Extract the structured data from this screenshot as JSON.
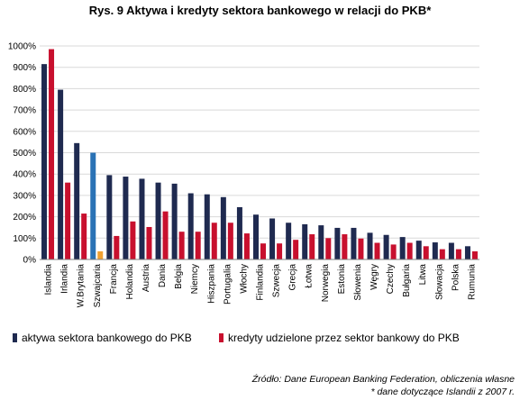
{
  "title": "Rys. 9 Aktywa i kredyty sektora bankowego w relacji do PKB*",
  "colors": {
    "assets": "#1f2a50",
    "credits": "#c8102e",
    "assets_highlight": "#2a72b5",
    "credits_highlight": "#f0a030",
    "grid": "#d9d9d9",
    "axis": "#808080"
  },
  "chart_data": {
    "type": "bar",
    "categories": [
      "Islandia",
      "Irlandia",
      "W.Brytania",
      "Szwajcaria",
      "Francja",
      "Holandia",
      "Austria",
      "Dania",
      "Belgia",
      "Niemcy",
      "Hiszpania",
      "Portugalia",
      "Włochy",
      "Finlandia",
      "Szwecja",
      "Grecja",
      "Łotwa",
      "Norwegia",
      "Estonia",
      "Słowenia",
      "Węgry",
      "Czechy",
      "Bułgaria",
      "Litwa",
      "Słowacja",
      "Polska",
      "Rumunia"
    ],
    "series": [
      {
        "name": "aktywa sektora bankowego do PKB",
        "values": [
          915,
          795,
          545,
          500,
          395,
          388,
          378,
          360,
          355,
          310,
          305,
          292,
          245,
          210,
          192,
          172,
          165,
          160,
          148,
          148,
          125,
          115,
          105,
          88,
          80,
          78,
          62
        ]
      },
      {
        "name": "kredyty udzielone przez sektor bankowy do PKB",
        "values": [
          985,
          360,
          215,
          38,
          110,
          178,
          152,
          225,
          130,
          130,
          172,
          172,
          122,
          75,
          75,
          92,
          118,
          100,
          118,
          98,
          78,
          70,
          78,
          62,
          48,
          48,
          38
        ]
      }
    ],
    "highlight_category": "Szwajcaria",
    "ylim": [
      0,
      1000
    ],
    "yticks": [
      "0%",
      "100%",
      "200%",
      "300%",
      "400%",
      "500%",
      "600%",
      "700%",
      "800%",
      "900%",
      "1000%"
    ],
    "grid": true,
    "legend_position": "bottom"
  },
  "source_lines": [
    "Źródło: Dane European Banking Federation, obliczenia własne",
    "* dane dotyczące Islandii z 2007 r."
  ]
}
